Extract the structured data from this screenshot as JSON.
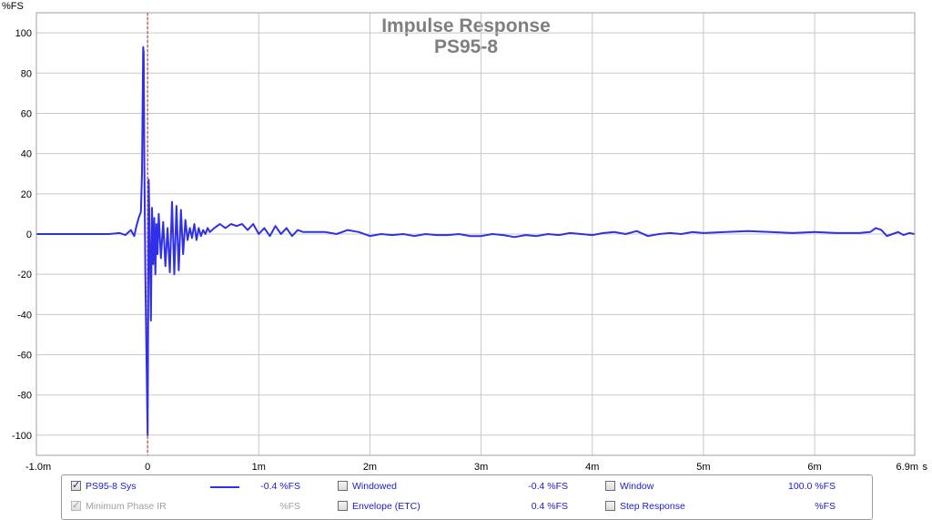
{
  "chart_data": {
    "type": "line",
    "title": "Impulse Response",
    "subtitle": "PS95-8",
    "ylabel": "%FS",
    "xunit": "s",
    "xlim": [
      -1.0,
      6.9
    ],
    "ylim": [
      -110,
      110
    ],
    "x_ticks": [
      -1.0,
      0,
      1,
      2,
      3,
      4,
      5,
      6,
      6.9
    ],
    "x_tick_labels": [
      "-1.0m",
      "0",
      "1m",
      "2m",
      "3m",
      "4m",
      "5m",
      "6m",
      "6.9m"
    ],
    "y_ticks": [
      100,
      80,
      60,
      40,
      20,
      0,
      -20,
      -40,
      -60,
      -80,
      -100
    ],
    "y_tick_labels": [
      "100",
      "80",
      "60",
      "40",
      "20",
      "0",
      "-20",
      "-40",
      "-60",
      "-80",
      "-100"
    ],
    "grid": true,
    "marker_x": 0,
    "colors": {
      "series": "#3030e8",
      "marker": "#cc2020",
      "grid": "#c8c8c8",
      "frame": "#a0a0a0"
    },
    "series": [
      {
        "name": "PS95-8 Sys",
        "x": [
          -1.0,
          -0.5,
          -0.35,
          -0.25,
          -0.2,
          -0.15,
          -0.12,
          -0.1,
          -0.08,
          -0.06,
          -0.05,
          -0.04,
          -0.035,
          -0.03,
          -0.02,
          -0.01,
          0.0,
          0.005,
          0.01,
          0.02,
          0.03,
          0.04,
          0.05,
          0.06,
          0.07,
          0.08,
          0.09,
          0.1,
          0.12,
          0.14,
          0.16,
          0.18,
          0.2,
          0.22,
          0.24,
          0.26,
          0.28,
          0.3,
          0.32,
          0.34,
          0.36,
          0.38,
          0.4,
          0.42,
          0.44,
          0.46,
          0.48,
          0.5,
          0.52,
          0.54,
          0.56,
          0.6,
          0.65,
          0.7,
          0.75,
          0.8,
          0.85,
          0.9,
          0.95,
          1.0,
          1.05,
          1.1,
          1.15,
          1.2,
          1.25,
          1.3,
          1.35,
          1.4,
          1.5,
          1.6,
          1.7,
          1.8,
          1.9,
          2.0,
          2.1,
          2.2,
          2.3,
          2.4,
          2.5,
          2.6,
          2.7,
          2.8,
          2.9,
          3.0,
          3.1,
          3.2,
          3.3,
          3.4,
          3.5,
          3.6,
          3.7,
          3.8,
          3.9,
          4.0,
          4.1,
          4.2,
          4.3,
          4.4,
          4.5,
          4.6,
          4.7,
          4.8,
          4.9,
          5.0,
          5.2,
          5.4,
          5.6,
          5.8,
          6.0,
          6.2,
          6.4,
          6.5,
          6.55,
          6.6,
          6.65,
          6.7,
          6.75,
          6.8,
          6.85,
          6.9
        ],
        "y": [
          0,
          0,
          0,
          0.5,
          -0.5,
          2,
          -1,
          4,
          8,
          11,
          30,
          93,
          90,
          40,
          -20,
          -60,
          -100,
          -40,
          27,
          -5,
          -43,
          13,
          -15,
          8,
          -20,
          5,
          -10,
          10,
          -12,
          6,
          -16,
          3,
          -19,
          16,
          -20,
          14,
          -18,
          12,
          -10,
          7,
          -3,
          3,
          -2,
          5,
          -3,
          3,
          -1,
          2,
          0,
          3,
          1,
          3,
          5,
          3,
          5,
          4,
          5,
          2,
          5,
          0,
          3,
          -1,
          4,
          0,
          3,
          -1,
          2,
          1,
          1,
          1,
          0,
          2,
          1,
          -1,
          0,
          -0.5,
          0,
          -1,
          0,
          -0.5,
          -0.5,
          0,
          -1,
          -1,
          0,
          -0.5,
          -1.5,
          -0.5,
          -1,
          0,
          -0.5,
          0.5,
          0,
          -0.5,
          0.5,
          1,
          0,
          1.5,
          -1,
          0,
          0.5,
          0,
          1,
          0.5,
          1,
          1.5,
          1,
          0.5,
          1,
          0.5,
          0.5,
          1,
          3,
          2,
          -1,
          0,
          1,
          -0.5,
          0.5,
          0
        ]
      }
    ]
  },
  "legend": {
    "rows": [
      [
        {
          "label": "PS95-8 Sys",
          "checked": true,
          "enabled": true,
          "has_line": true,
          "value": "-0.4 %FS"
        },
        {
          "label": "Windowed",
          "checked": false,
          "enabled": true,
          "value": "-0.4 %FS"
        },
        {
          "label": "Window",
          "checked": false,
          "enabled": true,
          "value": "100.0 %FS"
        }
      ],
      [
        {
          "label": "Minimum Phase IR",
          "checked": true,
          "enabled": false,
          "value": "%FS"
        },
        {
          "label": "Envelope (ETC)",
          "checked": false,
          "enabled": true,
          "value": "0.4 %FS"
        },
        {
          "label": "Step Response",
          "checked": false,
          "enabled": true,
          "value": "%FS"
        }
      ]
    ]
  }
}
